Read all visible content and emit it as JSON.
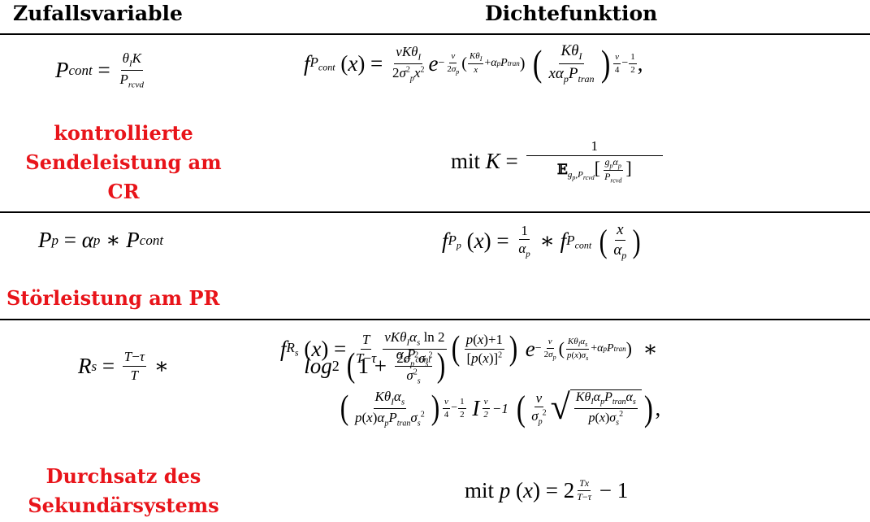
{
  "headers": {
    "variable": "Zufallsvariable",
    "density": "Dichtefunktion"
  },
  "rows": [
    {
      "variable_name": "P_cont",
      "description": "kontrollierte Sendeleistung am CR",
      "description_lines": [
        "kontrollierte",
        "Sendeleistung am",
        "CR"
      ],
      "formula_variable": "P_cont = θ_I K / P_rcvd",
      "formula_density": "f_Pcont(x) = νKθ_I/(2σ_p²x²) e^{−ν/(2σ_p²)(Kθ_I/x + α_p P_tran)} (Kθ_I/(xα_p P_tran))^{ν/4 − 1/2},",
      "formula_note": "mit K = 1 / E_{g_p,P_rcvd}[g_p α_p / P_rcvd]"
    },
    {
      "variable_name": "P_p",
      "description": "Störleistung am PR",
      "description_lines": [
        "Störleistung am PR"
      ],
      "formula_variable": "P_p = α_p ∗ P_cont",
      "formula_density": "f_Pp(x) = 1/α_p ∗ f_Pcont(x/α_p)"
    },
    {
      "variable_name": "R_s",
      "description": "Durchsatz des Sekundärsystems",
      "description_lines": [
        "Durchsatz des",
        "Sekundärsystems"
      ],
      "formula_variable": "R_s = (T−τ)/T ∗ log2(1 + α_s P_cont / σ_s²)",
      "formula_density": "f_Rs(x) = T/(T−τ) νKθ_I α_s ln2/(2σ_p²σ_s²) ((p(x)+1)/[p(x)]²) e^{−ν/(2σ_p²)(Kθ_I α_s/(p(x)σ_s²) + α_p P_tran)} ∗ (Kθ_I α_s/(p(x)α_p P_tran σ_s²))^{ν/4 − 1/2} I_{ν/2 − 1}(ν/σ_p² √(Kθ_I α_p P_tran α_s/(p(x)σ_s²))),",
      "formula_note": "mit p(x) = 2^{Tx/(T−τ)} − 1"
    }
  ],
  "colors": {
    "accent_red": "#e8141a",
    "rule": "#000000"
  }
}
